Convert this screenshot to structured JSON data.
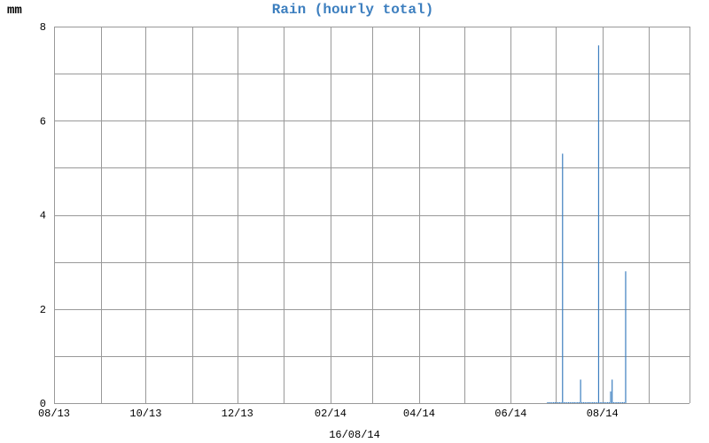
{
  "chart_data": {
    "type": "bar",
    "title": "Rain (hourly total)",
    "ylabel": "mm",
    "date_label": "16/08/14",
    "ylim": [
      0,
      8
    ],
    "yticks": [
      0,
      2,
      4,
      6,
      8
    ],
    "xlim": [
      "2013-08-01",
      "2014-09-28"
    ],
    "xticks": [
      "2013-08-01",
      "2013-10-01",
      "2013-12-01",
      "2014-02-01",
      "2014-04-01",
      "2014-06-01",
      "2014-08-01"
    ],
    "xtick_labels": [
      "08/13",
      "10/13",
      "12/13",
      "02/14",
      "04/14",
      "06/14",
      "08/14"
    ],
    "x": [
      "2014-06-25",
      "2014-06-26",
      "2014-06-27",
      "2014-06-28",
      "2014-06-29",
      "2014-06-30",
      "2014-07-01",
      "2014-07-02",
      "2014-07-03",
      "2014-07-04",
      "2014-07-05",
      "2014-07-06",
      "2014-07-07",
      "2014-07-08",
      "2014-07-09",
      "2014-07-10",
      "2014-07-11",
      "2014-07-12",
      "2014-07-13",
      "2014-07-14",
      "2014-07-15",
      "2014-07-16",
      "2014-07-17",
      "2014-07-18",
      "2014-07-19",
      "2014-07-20",
      "2014-07-21",
      "2014-07-22",
      "2014-07-23",
      "2014-07-24",
      "2014-07-25",
      "2014-07-26",
      "2014-07-27",
      "2014-07-28",
      "2014-07-29",
      "2014-07-30",
      "2014-07-31",
      "2014-08-01",
      "2014-08-02",
      "2014-08-03",
      "2014-08-04",
      "2014-08-05",
      "2014-08-06",
      "2014-08-07",
      "2014-08-08",
      "2014-08-09",
      "2014-08-10",
      "2014-08-11",
      "2014-08-12",
      "2014-08-13",
      "2014-08-14",
      "2014-08-15",
      "2014-08-16"
    ],
    "values": [
      0,
      0,
      0,
      0,
      0,
      0,
      0,
      0,
      0,
      0,
      5.3,
      0,
      0,
      0,
      0,
      0,
      0,
      0,
      0,
      0,
      0,
      0,
      0.5,
      0,
      0,
      0,
      0,
      0,
      0,
      0,
      0,
      0,
      0,
      0,
      7.6,
      0,
      0,
      0,
      0,
      0,
      0,
      0,
      0.25,
      0.5,
      0,
      0,
      0,
      0,
      0,
      0,
      0,
      0,
      2.8
    ],
    "grid": true,
    "colors": {
      "bar": "#3d7fbf",
      "title": "#3d7fbf",
      "grid": "#999999",
      "axis": "#999999"
    }
  }
}
